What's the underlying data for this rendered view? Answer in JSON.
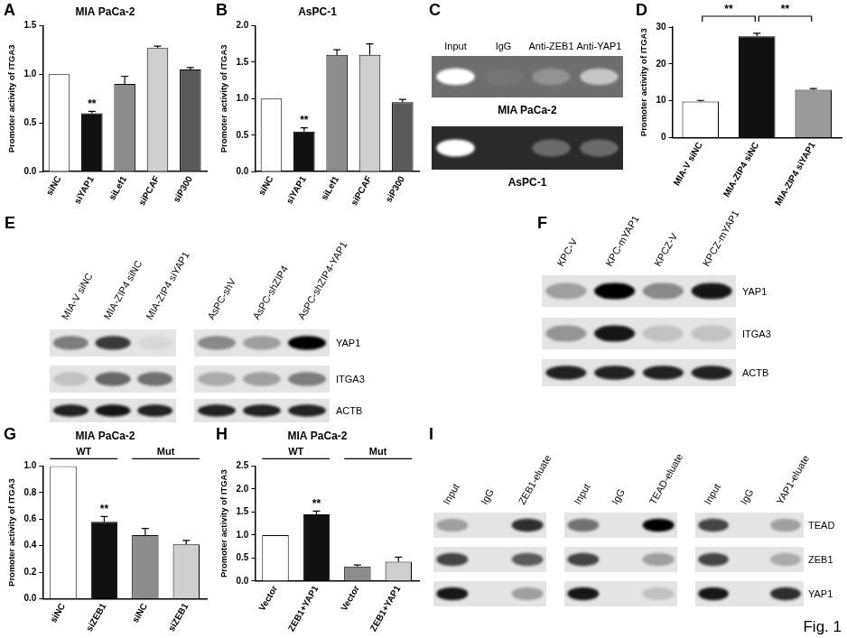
{
  "chart_data": [
    {
      "panel": "A",
      "type": "bar",
      "title": "MIA PaCa-2",
      "ylabel": "Promoter activity of ITGA3",
      "categories": [
        "siNC",
        "siYAP1",
        "siLef1",
        "siPCAF",
        "siP300"
      ],
      "values": [
        1.0,
        0.6,
        0.9,
        1.27,
        1.05
      ],
      "errors": [
        0,
        0.02,
        0.08,
        0.02,
        0.02
      ],
      "colors": [
        "#ffffff",
        "#111111",
        "#8c8c8c",
        "#cfcfcf",
        "#5a5a5a"
      ],
      "ylim": [
        0,
        1.5
      ],
      "yticks": [
        {
          "value": 0,
          "label": "0.0"
        },
        0.5,
        {
          "value": 1,
          "label": "1.0"
        },
        1.5
      ],
      "grid": false,
      "annotations": [
        {
          "at": 1,
          "text": "**"
        }
      ]
    },
    {
      "panel": "B",
      "type": "bar",
      "title": "AsPC-1",
      "ylabel": "Promoter activity of ITGA3",
      "categories": [
        "siNC",
        "siYAP1",
        "siLef1",
        "siPCAF",
        "siP300"
      ],
      "values": [
        1.0,
        0.55,
        1.6,
        1.6,
        0.95
      ],
      "errors": [
        0,
        0.05,
        0.07,
        0.15,
        0.04
      ],
      "colors": [
        "#ffffff",
        "#111111",
        "#8c8c8c",
        "#cfcfcf",
        "#5a5a5a"
      ],
      "ylim": [
        0,
        2
      ],
      "yticks": [
        {
          "value": 0,
          "label": "0.0"
        },
        0.5,
        {
          "value": 1,
          "label": "1.0"
        },
        1.5,
        {
          "value": 2,
          "label": "2.0"
        }
      ],
      "grid": false,
      "annotations": [
        {
          "at": 1,
          "text": "**"
        }
      ]
    },
    {
      "panel": "D",
      "type": "bar",
      "ylabel": "Promoter activity of ITGA3",
      "categories": [
        "MIA-V siNC",
        "MIA-ZIP4 siNC",
        "MIA-ZIP4 siYAP1"
      ],
      "values": [
        9.8,
        27.5,
        13.0
      ],
      "errors": [
        0.3,
        0.8,
        0.3
      ],
      "colors": [
        "#ffffff",
        "#111111",
        "#9a9a9a"
      ],
      "ylim": [
        0,
        30
      ],
      "yticks": [
        0,
        10,
        20,
        30
      ],
      "grid": false,
      "brackets": [
        {
          "from": 0,
          "to": 1,
          "text": "**"
        },
        {
          "from": 1,
          "to": 2,
          "text": "**"
        }
      ]
    },
    {
      "panel": "G",
      "type": "bar",
      "title": "MIA PaCa-2",
      "ylabel": "Promoter activity of ITGA3",
      "categories": [
        "siNC",
        "siZEB1",
        "siNC",
        "siZEB1"
      ],
      "values": [
        1.0,
        0.58,
        0.48,
        0.41
      ],
      "errors": [
        0,
        0.04,
        0.05,
        0.03
      ],
      "colors": [
        "#ffffff",
        "#111111",
        "#8c8c8c",
        "#cfcfcf"
      ],
      "ylim": [
        0,
        1
      ],
      "yticks": [
        {
          "value": 0,
          "label": "0.0"
        },
        0.2,
        0.4,
        0.6,
        0.8,
        {
          "value": 1,
          "label": "1.0"
        }
      ],
      "grid": false,
      "annotations": [
        {
          "at": 1,
          "text": "**"
        }
      ],
      "groups": [
        {
          "text": "WT",
          "from": 0,
          "to": 1
        },
        {
          "text": "Mut",
          "from": 2,
          "to": 3
        }
      ]
    },
    {
      "panel": "H",
      "type": "bar",
      "title": "MIA PaCa-2",
      "ylabel": "Promoter activity of ITGA3",
      "categories": [
        "Vector",
        "ZEB1+YAP1",
        "Vector",
        "ZEB1+YAP1"
      ],
      "values": [
        1.0,
        1.45,
        0.32,
        0.42
      ],
      "errors": [
        0,
        0.07,
        0.03,
        0.1
      ],
      "colors": [
        "#ffffff",
        "#111111",
        "#8c8c8c",
        "#cfcfcf"
      ],
      "ylim": [
        0,
        2.5
      ],
      "yticks": [
        {
          "value": 0,
          "label": "0.0"
        },
        0.5,
        {
          "value": 1,
          "label": "1.0"
        },
        1.5,
        {
          "value": 2,
          "label": "2.0"
        },
        2.5
      ],
      "grid": false,
      "annotations": [
        {
          "at": 1,
          "text": "**"
        }
      ],
      "groups": [
        {
          "text": "WT",
          "from": 0,
          "to": 1
        },
        {
          "text": "Mut",
          "from": 2,
          "to": 3
        }
      ]
    }
  ],
  "blot_panels": [
    {
      "panel": "C",
      "lanes": [
        "Input",
        "IgG",
        "Anti-ZEB1",
        "Anti-YAP1"
      ],
      "blots": [
        {
          "caption": "MIA PaCa-2",
          "band_intensity": [
            1.0,
            0.05,
            0.25,
            0.6
          ]
        },
        {
          "caption": "AsPC-1",
          "band_intensity": [
            1.0,
            0.0,
            0.3,
            0.3
          ]
        }
      ]
    },
    {
      "panel": "E",
      "row_labels": [
        "YAP1",
        "ITGA3",
        "ACTB"
      ],
      "groups": [
        {
          "lanes": [
            "MIA-V siNC",
            "MIA-ZIP4 siNC",
            "MIA-ZIP4 siYAP1"
          ],
          "band_intensity": [
            [
              0.45,
              0.75,
              0.05
            ],
            [
              0.15,
              0.55,
              0.5
            ],
            [
              0.85,
              0.9,
              0.85
            ]
          ]
        },
        {
          "lanes": [
            "AsPC-shV",
            "AsPC-shZIP4",
            "AsPC-shZIP4-YAP1"
          ],
          "band_intensity": [
            [
              0.4,
              0.3,
              1.0
            ],
            [
              0.25,
              0.3,
              0.45
            ],
            [
              0.85,
              0.85,
              0.85
            ]
          ]
        }
      ]
    },
    {
      "panel": "F",
      "row_labels": [
        "YAP1",
        "ITGA3",
        "ACTB"
      ],
      "groups": [
        {
          "lanes": [
            "KPC-V",
            "KPC-mYAP1",
            "KPCZ-V",
            "KPCZ-mYAP1"
          ],
          "band_intensity": [
            [
              0.3,
              1.0,
              0.4,
              0.9
            ],
            [
              0.35,
              0.9,
              0.15,
              0.15
            ],
            [
              0.85,
              0.85,
              0.85,
              0.85
            ]
          ]
        }
      ]
    },
    {
      "panel": "I",
      "row_labels": [
        "TEAD",
        "ZEB1",
        "YAP1"
      ],
      "groups": [
        {
          "lanes": [
            "Input",
            "IgG",
            "ZEB1-eluate"
          ],
          "band_intensity": [
            [
              0.3,
              0.0,
              0.8
            ],
            [
              0.7,
              0.0,
              0.6
            ],
            [
              0.9,
              0.0,
              0.3
            ]
          ]
        },
        {
          "lanes": [
            "Input",
            "IgG",
            "TEAD-eluate"
          ],
          "band_intensity": [
            [
              0.5,
              0.0,
              1.0
            ],
            [
              0.7,
              0.0,
              0.3
            ],
            [
              0.9,
              0.0,
              0.15
            ]
          ]
        },
        {
          "lanes": [
            "Input",
            "IgG",
            "YAP1-eluate"
          ],
          "band_intensity": [
            [
              0.7,
              0.0,
              0.3
            ],
            [
              0.7,
              0.0,
              0.25
            ],
            [
              0.9,
              0.0,
              0.8
            ]
          ]
        }
      ]
    }
  ],
  "figure_label": "Fig. 1"
}
